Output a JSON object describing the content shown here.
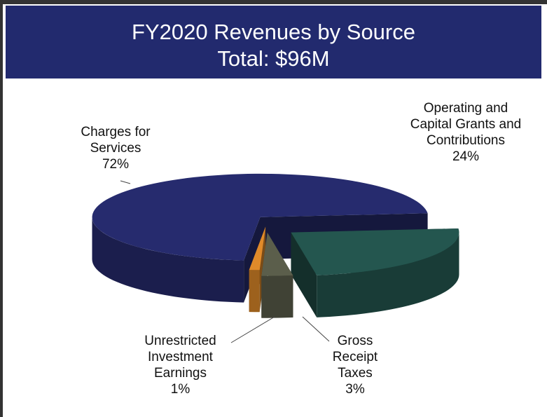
{
  "chart_data": {
    "type": "pie",
    "title": "FY2020 Revenues by Source",
    "subtitle": "Total: $96M",
    "categories": [
      "Charges for Services",
      "Operating and Capital Grants and Contributions",
      "Gross Receipt Taxes",
      "Unrestricted Investment Earnings"
    ],
    "values": [
      72,
      24,
      3,
      1
    ],
    "value_labels": [
      "72%",
      "24%",
      "3%",
      "1%"
    ],
    "colors": [
      "#262b6e",
      "#24564f",
      "#5b5e4b",
      "#e08a2a"
    ]
  }
}
